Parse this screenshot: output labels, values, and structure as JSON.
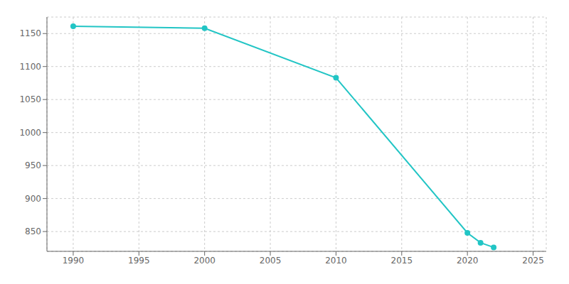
{
  "chart_data": {
    "type": "line",
    "x": [
      1990,
      2000,
      2010,
      2020,
      2021,
      2022
    ],
    "values": [
      1161,
      1158,
      1083,
      848,
      833,
      826
    ],
    "color": "#22c5c5",
    "marker": "circle",
    "xlim": [
      1988,
      2026
    ],
    "ylim": [
      820,
      1175
    ],
    "xticks": [
      1990,
      1995,
      2000,
      2005,
      2010,
      2015,
      2020,
      2025
    ],
    "yticks": [
      850,
      900,
      950,
      1000,
      1050,
      1100,
      1150
    ],
    "grid": true
  }
}
